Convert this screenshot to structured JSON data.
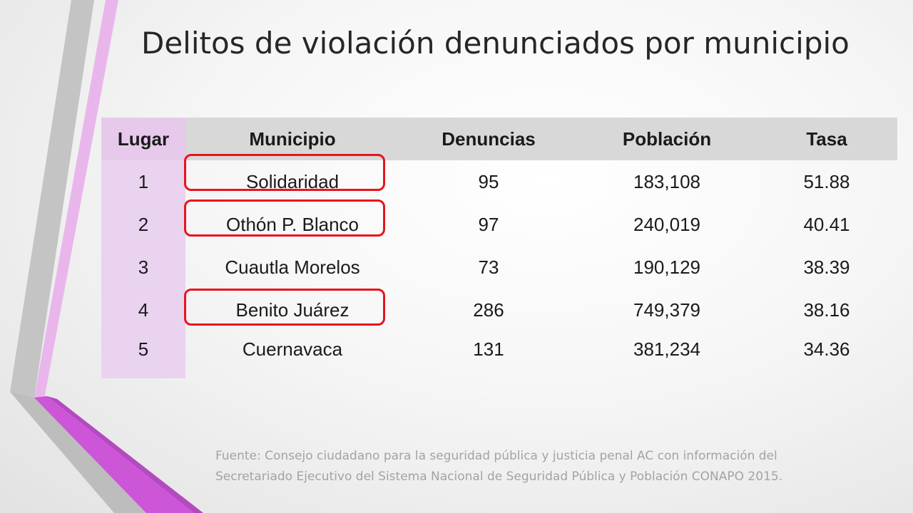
{
  "slide": {
    "title": "Delitos de violación denunciados por municipio",
    "source_line1": "Fuente: Consejo ciudadano para la seguridad pública y justicia penal AC con información del",
    "source_line2": "Secretariado Ejecutivo del Sistema Nacional de Seguridad Pública y Población CONAPO 2015."
  },
  "table": {
    "headers": [
      "Lugar",
      "Municipio",
      "Denuncias",
      "Población",
      "Tasa"
    ],
    "rows": [
      {
        "lugar": "1",
        "municipio": "Solidaridad",
        "denuncias": "95",
        "poblacion": "183,108",
        "tasa": "51.88",
        "highlighted": true
      },
      {
        "lugar": "2",
        "municipio": "Othón P. Blanco",
        "denuncias": "97",
        "poblacion": "240,019",
        "tasa": "40.41",
        "highlighted": true
      },
      {
        "lugar": "3",
        "municipio": "Cuautla Morelos",
        "denuncias": "73",
        "poblacion": "190,129",
        "tasa": "38.39",
        "highlighted": false
      },
      {
        "lugar": "4",
        "municipio": "Benito Juárez",
        "denuncias": "286",
        "poblacion": "749,379",
        "tasa": "38.16",
        "highlighted": true
      },
      {
        "lugar": "5",
        "municipio": "Cuernavaca",
        "denuncias": "131",
        "poblacion": "381,234",
        "tasa": "34.36",
        "highlighted": false
      }
    ]
  },
  "colors": {
    "highlight_border": "#e8141c",
    "rank_column_bg": "#ead3ef",
    "header_bg": "#d8d8d8",
    "accent_magenta": "#cc55d8",
    "accent_lilac": "#e9b6ec",
    "accent_gray": "#c4c4c4"
  }
}
